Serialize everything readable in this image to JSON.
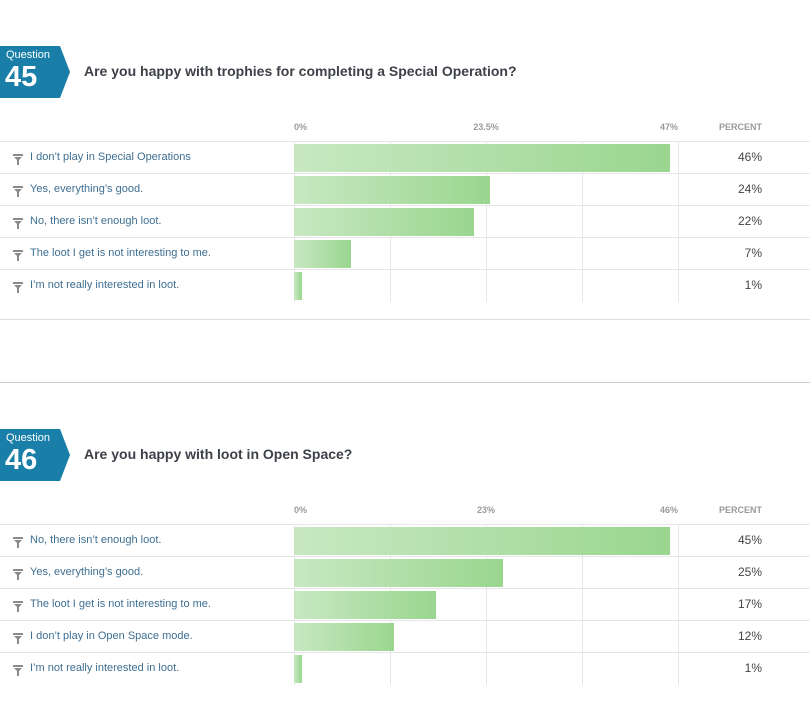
{
  "colors": {
    "badge": "#1a7fa8",
    "bar_start": "#c8e8c2",
    "bar_end": "#9ad68f",
    "label": "#3e6f92"
  },
  "icons": {
    "row_filter": "filter-icon"
  },
  "questions": [
    {
      "badge_word": "Question",
      "number": "45",
      "title": "Are you happy with trophies for completing a Special Operation?",
      "axis": {
        "min_label": "0%",
        "mid_label": "23.5%",
        "max_label": "47%",
        "percent_label": "PERCENT"
      },
      "rows": [
        {
          "label": "I don’t play in Special Operations",
          "pct_text": "46%"
        },
        {
          "label": "Yes, everything’s good.",
          "pct_text": "24%"
        },
        {
          "label": "No, there isn’t enough loot.",
          "pct_text": "22%"
        },
        {
          "label": "The loot I get is not interesting to me.",
          "pct_text": "7%"
        },
        {
          "label": "I’m not really interested in loot.",
          "pct_text": "1%"
        }
      ]
    },
    {
      "badge_word": "Question",
      "number": "46",
      "title": "Are you happy with loot in Open Space?",
      "axis": {
        "min_label": "0%",
        "mid_label": "23%",
        "max_label": "46%",
        "percent_label": "PERCENT"
      },
      "rows": [
        {
          "label": "No, there isn’t enough loot.",
          "pct_text": "45%"
        },
        {
          "label": "Yes, everything’s good.",
          "pct_text": "25%"
        },
        {
          "label": "The loot I get is not interesting to me.",
          "pct_text": "17%"
        },
        {
          "label": "I don’t play in Open Space mode.",
          "pct_text": "12%"
        },
        {
          "label": "I’m not really interested in loot.",
          "pct_text": "1%"
        }
      ]
    }
  ],
  "chart_data": [
    {
      "type": "bar",
      "orientation": "horizontal",
      "title": "Are you happy with trophies for completing a Special Operation?",
      "categories": [
        "I don’t play in Special Operations",
        "Yes, everything’s good.",
        "No, there isn’t enough loot.",
        "The loot I get is not interesting to me.",
        "I’m not really interested in loot."
      ],
      "values": [
        46,
        24,
        22,
        7,
        1
      ],
      "xlim": [
        0,
        47
      ],
      "xticks": [
        "0%",
        "23.5%",
        "47%"
      ],
      "grid": true
    },
    {
      "type": "bar",
      "orientation": "horizontal",
      "title": "Are you happy with loot in Open Space?",
      "categories": [
        "No, there isn’t enough loot.",
        "Yes, everything’s good.",
        "The loot I get is not interesting to me.",
        "I don’t play in Open Space mode.",
        "I’m not really interested in loot."
      ],
      "values": [
        45,
        25,
        17,
        12,
        1
      ],
      "xlim": [
        0,
        46
      ],
      "xticks": [
        "0%",
        "23%",
        "46%"
      ],
      "grid": true
    }
  ]
}
